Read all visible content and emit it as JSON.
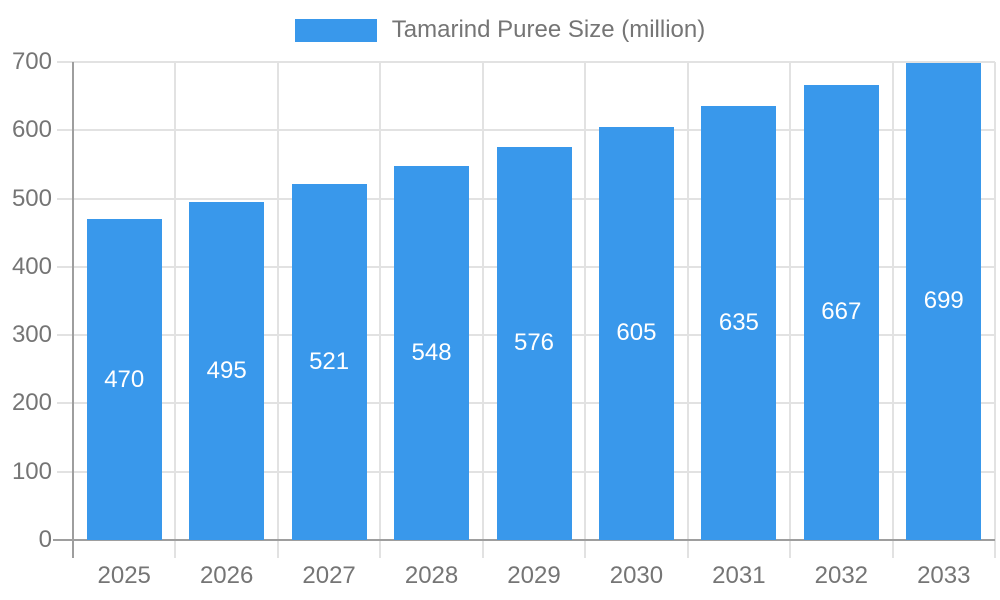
{
  "legend": {
    "label": "Tamarind Puree Size (million)"
  },
  "chart_data": {
    "type": "bar",
    "title": "Tamarind Puree Size (million)",
    "categories": [
      "2025",
      "2026",
      "2027",
      "2028",
      "2029",
      "2030",
      "2031",
      "2032",
      "2033"
    ],
    "series": [
      {
        "name": "Tamarind Puree Size (million)",
        "values": [
          470,
          495,
          521,
          548,
          576,
          605,
          635,
          667,
          699
        ]
      }
    ],
    "values": [
      470,
      495,
      521,
      548,
      576,
      605,
      635,
      667,
      699
    ],
    "yticks": [
      0,
      100,
      200,
      300,
      400,
      500,
      600,
      700
    ],
    "ylim": [
      0,
      700
    ],
    "xlabel": "",
    "ylabel": "",
    "grid": true,
    "legend_position": "top",
    "bar_labels_inside": true,
    "colors": {
      "bar": "#3998EB",
      "bar_label": "#FFFFFF",
      "axis_line": "#9E9E9E",
      "grid_line": "#E2E2E2",
      "text": "#757575",
      "background": "#FFFFFF"
    }
  }
}
